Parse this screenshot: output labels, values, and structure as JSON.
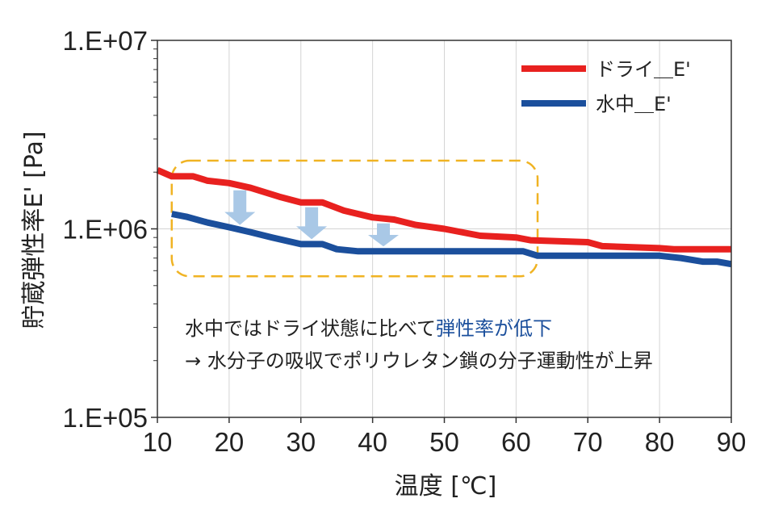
{
  "chart_data": {
    "type": "line",
    "title": "",
    "xlabel": "温度 [℃]",
    "ylabel": "貯蔵弾性率E' [Pa]",
    "xlim": [
      10,
      90
    ],
    "ylim": [
      100000,
      10000000
    ],
    "yscale": "log",
    "x_ticks": [
      "10",
      "20",
      "30",
      "40",
      "50",
      "60",
      "70",
      "80",
      "90"
    ],
    "y_ticks": [
      "1.E+05",
      "1.E+06",
      "1.E+07"
    ],
    "grid": true,
    "legend_position": "top-right",
    "series": [
      {
        "name": "ドライ＿E'",
        "color": "#e8211f",
        "points": [
          [
            10,
            2050000
          ],
          [
            12,
            1900000
          ],
          [
            15,
            1900000
          ],
          [
            17,
            1800000
          ],
          [
            20,
            1750000
          ],
          [
            23,
            1650000
          ],
          [
            27,
            1480000
          ],
          [
            30,
            1380000
          ],
          [
            33,
            1380000
          ],
          [
            36,
            1250000
          ],
          [
            40,
            1150000
          ],
          [
            43,
            1120000
          ],
          [
            46,
            1050000
          ],
          [
            50,
            1000000
          ],
          [
            55,
            920000
          ],
          [
            60,
            900000
          ],
          [
            62,
            870000
          ],
          [
            70,
            850000
          ],
          [
            72,
            810000
          ],
          [
            80,
            790000
          ],
          [
            82,
            780000
          ],
          [
            90,
            780000
          ]
        ]
      },
      {
        "name": "水中＿E'",
        "color": "#1b4f9c",
        "points": [
          [
            12,
            1200000
          ],
          [
            14,
            1160000
          ],
          [
            17,
            1080000
          ],
          [
            20,
            1020000
          ],
          [
            23,
            960000
          ],
          [
            26,
            900000
          ],
          [
            30,
            830000
          ],
          [
            33,
            830000
          ],
          [
            35,
            780000
          ],
          [
            38,
            760000
          ],
          [
            40,
            760000
          ],
          [
            50,
            760000
          ],
          [
            61,
            760000
          ],
          [
            63,
            720000
          ],
          [
            70,
            720000
          ],
          [
            80,
            720000
          ],
          [
            83,
            700000
          ],
          [
            86,
            670000
          ],
          [
            88,
            670000
          ],
          [
            90,
            650000
          ]
        ]
      }
    ],
    "arrows_x": [
      21.5,
      31.5,
      41.5
    ],
    "highlight_box": {
      "x": [
        12,
        63
      ],
      "y": [
        560000,
        2300000
      ]
    },
    "annotation": {
      "line1_prefix": "水中ではドライ状態に比べて",
      "line1_highlight": "弾性率が低下",
      "line2": "→ 水分子の吸収でポリウレタン鎖の分子運動性が上昇"
    },
    "highlight_color": "#f0b323",
    "arrow_color": "#a9c8e6",
    "annotation_highlight_color": "#1b4f9c"
  }
}
